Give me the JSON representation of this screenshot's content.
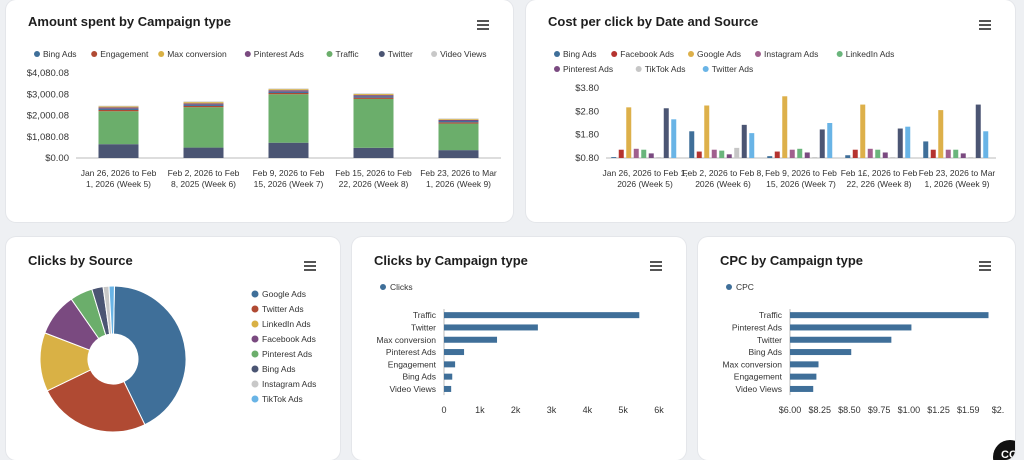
{
  "colors": {
    "bing": "#3f6f99",
    "engagement": "#b04a33",
    "max": "#d9b145",
    "pinterest": "#7a4a80",
    "traffic": "#6bae6b",
    "twitter": "#4b5573",
    "video": "#c8c8c8",
    "facebook": "#b5332f",
    "google": "#ddb04a",
    "instagram": "#a0608e",
    "linkedin": "#6ab57c",
    "tiktok": "#c6c6c6",
    "twitterLight": "#69b4e6",
    "axis": "#333"
  },
  "fab_label": "CC",
  "chart_data": [
    {
      "id": "amount",
      "type": "bar",
      "stacked": true,
      "title": "Amount spent by Campaign type",
      "categories": [
        [
          "Jan 26, 2026 to Feb",
          "1, 2026 (Week 5)"
        ],
        [
          "Feb 2, 2026 to Feb",
          "8, 2025 (Week 6)"
        ],
        [
          "Feb 9, 2026 to Feb",
          "15, 2026 (Week 7)"
        ],
        [
          "Feb 15, 2026 to Feb",
          "22, 2026 (Week 8)"
        ],
        [
          "Feb 23, 2026 to Mar",
          "1, 2026 (Week 9)"
        ]
      ],
      "yticks": [
        "$0.00",
        "$1,080.08",
        "$2,000.08",
        "$3,000.08",
        "$4,080.08"
      ],
      "ylim": [
        0,
        4000
      ],
      "series": [
        {
          "name": "Bing Ads",
          "color": "bing",
          "values": [
            0,
            0,
            0,
            0,
            0
          ]
        },
        {
          "name": "Engagement",
          "color": "engagement",
          "values": [
            0,
            0,
            0,
            0,
            0
          ]
        },
        {
          "name": "Max conversion",
          "color": "max",
          "values": [
            0,
            0,
            0,
            0,
            0
          ]
        },
        {
          "name": "Pinterest Ads",
          "color": "pinterest",
          "values": [
            0,
            0,
            0,
            0,
            0
          ]
        },
        {
          "name": "Traffic",
          "color": "traffic",
          "values": [
            0,
            0,
            0,
            0,
            0
          ]
        },
        {
          "name": "Twitter",
          "color": "twitter",
          "values": [
            0,
            0,
            0,
            0,
            0
          ]
        },
        {
          "name": "Video Views",
          "color": "video",
          "values": [
            0,
            0,
            0,
            0,
            0
          ]
        }
      ],
      "stack_order": [
        "Twitter",
        "Traffic",
        "Engagement",
        "Bing Ads",
        "Pinterest Ads",
        "Max conversion",
        "Video Views"
      ],
      "stack_values": {
        "Twitter": [
          650,
          490,
          720,
          480,
          370
        ],
        "Traffic": [
          1550,
          1900,
          2280,
          2300,
          1250
        ],
        "Engagement": [
          60,
          60,
          60,
          60,
          60
        ],
        "Bing Ads": [
          60,
          60,
          60,
          60,
          60
        ],
        "Pinterest Ads": [
          60,
          60,
          70,
          60,
          50
        ],
        "Max conversion": [
          50,
          60,
          50,
          50,
          40
        ],
        "Video Views": [
          30,
          30,
          30,
          30,
          30
        ]
      }
    },
    {
      "id": "cpc_date",
      "type": "bar",
      "title": "Cost per click by Date and Source",
      "categories": [
        [
          "Jan 26, 2026 to Feb 1,",
          "2026 (Week 5)"
        ],
        [
          "Feb 2, 2026 to Feb 8,",
          "2026 (Week 6)"
        ],
        [
          "Feb 9, 2026 to Feb",
          "15, 2026 (Week 7)"
        ],
        [
          "Feb 1£, 2026 to Feb",
          "22, 226 (Week 8)"
        ],
        [
          "Feb 23, 2026 to Mar",
          "1, 2026 (Week 9)"
        ]
      ],
      "yticks": [
        "$0.80",
        "$1.80",
        "$2.80",
        "$3.80"
      ],
      "ylim": [
        0,
        3.8
      ],
      "series": [
        {
          "name": "Bing Ads",
          "color": "bing",
          "values": [
            0.05,
            1.45,
            0.1,
            0.15,
            0.9
          ]
        },
        {
          "name": "Facebook Ads",
          "color": "facebook",
          "values": [
            0.45,
            0.35,
            0.35,
            0.45,
            0.45
          ]
        },
        {
          "name": "Google Ads",
          "color": "google",
          "values": [
            2.75,
            2.85,
            3.35,
            2.9,
            2.6
          ]
        },
        {
          "name": "Instagram Ads",
          "color": "instagram",
          "values": [
            0.5,
            0.45,
            0.45,
            0.5,
            0.45
          ]
        },
        {
          "name": "LinkedIn Ads",
          "color": "linkedin",
          "values": [
            0.45,
            0.4,
            0.5,
            0.45,
            0.45
          ]
        },
        {
          "name": "Pinterest Ads",
          "color": "pinterest",
          "values": [
            0.25,
            0.2,
            0.3,
            0.3,
            0.25
          ]
        },
        {
          "name": "TikTok Ads",
          "color": "tiktok",
          "values": [
            0.05,
            0.55,
            0.05,
            0.05,
            0.05
          ]
        },
        {
          "name": "Twitter Ads",
          "color": "twitterLight",
          "values": [
            0,
            0,
            0,
            0,
            0
          ]
        }
      ],
      "extra_bars": [
        {
          "name": "Twitter",
          "color": "twitter",
          "values": [
            2.7,
            1.8,
            1.55,
            1.6,
            2.9
          ]
        },
        {
          "name": "Twitter Ads",
          "color": "twitterLight",
          "values": [
            2.1,
            1.35,
            1.9,
            1.7,
            1.45
          ]
        }
      ]
    },
    {
      "id": "clicks_source",
      "type": "pie",
      "donut": true,
      "title": "Clicks by Source",
      "slices": [
        {
          "name": "Google Ads",
          "color": "bing",
          "value": 42.5
        },
        {
          "name": "Twitter Ads",
          "color": "engagement",
          "value": 25
        },
        {
          "name": "LinkedIn Ads",
          "color": "max",
          "value": 13
        },
        {
          "name": "Facebook Ads",
          "color": "pinterest",
          "value": 9.5
        },
        {
          "name": "Pinterest Ads",
          "color": "traffic",
          "value": 5
        },
        {
          "name": "Bing Ads",
          "color": "twitter",
          "value": 2.5
        },
        {
          "name": "Instagram Ads",
          "color": "video",
          "value": 1.3
        },
        {
          "name": "TikTok Ads",
          "color": "twitterLight",
          "value": 1.2
        }
      ]
    },
    {
      "id": "clicks_campaign",
      "type": "bar",
      "horizontal": true,
      "title": "Clicks by Campaign type",
      "legend": "Clicks",
      "categories": [
        "Traffic",
        "Twitter",
        "Max conversion",
        "Pinterest Ads",
        "Engagement",
        "Bing Ads",
        "Video Views"
      ],
      "values": [
        5450,
        2620,
        1480,
        560,
        310,
        230,
        200
      ],
      "xticks": [
        "0",
        "1k",
        "2k",
        "3k",
        "4k",
        "5k",
        "6k"
      ],
      "xlim": [
        0,
        6000
      ]
    },
    {
      "id": "cpc_campaign",
      "type": "bar",
      "horizontal": true,
      "title": "CPC by Campaign type",
      "legend": "CPC",
      "categories": [
        "Traffic",
        "Pinterest Ads",
        "Twitter",
        "Bing Ads",
        "Max conversion",
        "Engagement",
        "Video Views"
      ],
      "values": [
        1.88,
        1.15,
        0.96,
        0.58,
        0.27,
        0.25,
        0.22
      ],
      "xticks": [
        "$6.00",
        "$8.25",
        "$8.50",
        "$9.75",
        "$1.00",
        "$1.25",
        "$1.59",
        "$2."
      ],
      "xlim": [
        0,
        1.97
      ]
    }
  ]
}
